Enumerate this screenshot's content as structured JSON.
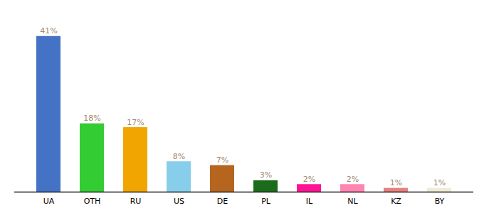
{
  "chart_data": {
    "type": "bar",
    "categories": [
      "UA",
      "OTH",
      "RU",
      "US",
      "DE",
      "PL",
      "IL",
      "NL",
      "KZ",
      "BY"
    ],
    "values": [
      41,
      18,
      17,
      8,
      7,
      3,
      2,
      2,
      1,
      1
    ],
    "value_labels": [
      "41%",
      "18%",
      "17%",
      "8%",
      "7%",
      "3%",
      "2%",
      "2%",
      "1%",
      "1%"
    ],
    "colors": [
      "#4472c4",
      "#33cc33",
      "#f0a500",
      "#87ceeb",
      "#b5651d",
      "#1a6b1a",
      "#ff1493",
      "#ff85b0",
      "#e88080",
      "#f0ead8"
    ],
    "ylim": [
      0,
      46
    ],
    "data_labels": true,
    "tick_labels": "x"
  }
}
